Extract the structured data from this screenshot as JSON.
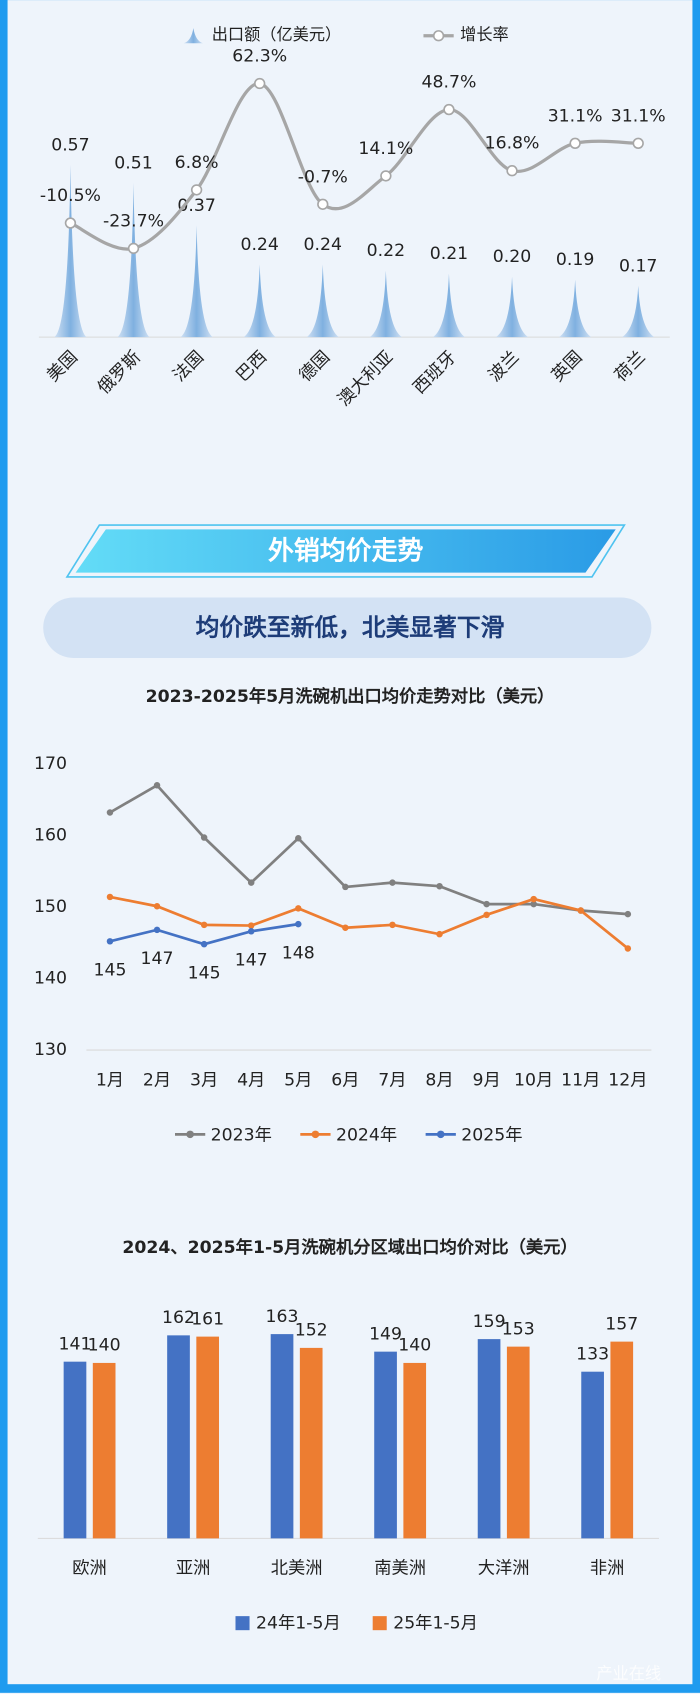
{
  "section": {
    "banner": "外销均价走势",
    "subtitle": "均价跌至新低，北美显著下滑"
  },
  "watermark": "产业在线",
  "chart_data": [
    {
      "type": "bar-line",
      "categories": [
        "美国",
        "俄罗斯",
        "法国",
        "巴西",
        "德国",
        "澳大利亚",
        "西班牙",
        "波兰",
        "英国",
        "荷兰"
      ],
      "ylim": [
        0,
        0.9
      ],
      "y2lim": [
        -70,
        72
      ],
      "series": [
        {
          "name": "出口额（亿美元）",
          "type": "bar",
          "color": "#9dc3e6",
          "values": [
            0.57,
            0.51,
            0.37,
            0.24,
            0.24,
            0.22,
            0.21,
            0.2,
            0.19,
            0.17
          ],
          "value_labels": [
            "0.57",
            "0.51",
            "0.37",
            "0.24",
            "0.24",
            "0.22",
            "0.21",
            "0.20",
            "0.19",
            "0.17"
          ]
        },
        {
          "name": "增长率",
          "type": "line",
          "axis": "y2",
          "color": "#a6a6a6",
          "values": [
            -10.5,
            -23.7,
            6.8,
            62.3,
            -0.7,
            14.1,
            48.7,
            16.8,
            31.1,
            31.1
          ],
          "value_labels": [
            "-10.5%",
            "-23.7%",
            "6.8%",
            "62.3%",
            "-0.7%",
            "14.1%",
            "48.7%",
            "16.8%",
            "31.1%",
            "31.1%"
          ]
        }
      ]
    },
    {
      "type": "line",
      "title": "2023-2025年5月洗碗机出口均价走势对比（美元）",
      "categories": [
        "1月",
        "2月",
        "3月",
        "4月",
        "5月",
        "6月",
        "7月",
        "8月",
        "9月",
        "10月",
        "11月",
        "12月"
      ],
      "ylim": [
        130,
        170
      ],
      "yticks": [
        130,
        140,
        150,
        160,
        170
      ],
      "series": [
        {
          "name": "2023年",
          "color": "#808080",
          "values": [
            163.2,
            167.0,
            159.7,
            153.4,
            159.6,
            152.8,
            153.4,
            152.9,
            150.4,
            150.4,
            149.5,
            149.0
          ]
        },
        {
          "name": "2024年",
          "color": "#ed7d31",
          "values": [
            151.4,
            150.1,
            147.5,
            147.4,
            149.8,
            147.1,
            147.5,
            146.2,
            148.9,
            151.1,
            149.5,
            144.2
          ]
        },
        {
          "name": "2025年",
          "color": "#4472c4",
          "values": [
            145.2,
            146.8,
            144.8,
            146.6,
            147.6,
            null,
            null,
            null,
            null,
            null,
            null,
            null
          ],
          "value_labels": [
            "145",
            "147",
            "145",
            "147",
            "148",
            null,
            null,
            null,
            null,
            null,
            null,
            null
          ]
        }
      ]
    },
    {
      "type": "grouped-bar",
      "title": "2024、2025年1-5月洗碗机分区域出口均价对比（美元）",
      "categories": [
        "欧洲",
        "亚洲",
        "北美洲",
        "南美洲",
        "大洋洲",
        "非洲"
      ],
      "ylim": [
        0,
        200
      ],
      "series": [
        {
          "name": "24年1-5月",
          "color": "#4472c4",
          "values": [
            141,
            162,
            163,
            149,
            159,
            133
          ]
        },
        {
          "name": "25年1-5月",
          "color": "#ed7d31",
          "values": [
            140,
            161,
            152,
            140,
            153,
            157
          ]
        }
      ]
    }
  ]
}
